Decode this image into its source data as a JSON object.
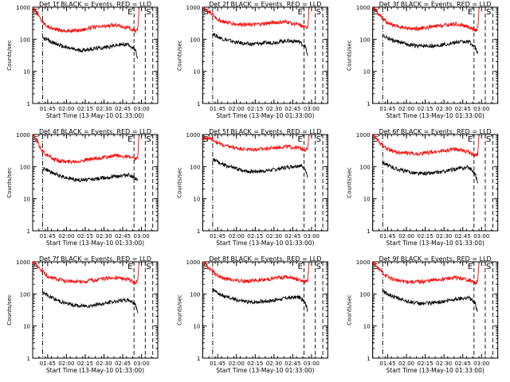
{
  "chart_data": [
    {
      "type": "line",
      "title": "Det 1f BLACK = Events, RED = LLD",
      "xlabel": "Start Time (13-May-10 01:33:00)",
      "ylabel": "Counts/sec",
      "yscale": "log",
      "ylim": [
        1,
        1000
      ],
      "xlim": [
        "01:33",
        "03:13"
      ],
      "x_ticks": [
        "01:45",
        "02:00",
        "02:15",
        "02:30",
        "02:45",
        "03:00"
      ],
      "y_ticks": [
        "1",
        "10",
        "100",
        "1000"
      ],
      "markers": [
        {
          "label": "S",
          "time": "01:33",
          "style": "dash-dot"
        },
        {
          "label": "",
          "time": "01:41",
          "style": "dash-dot"
        },
        {
          "label": "E",
          "time": "02:54",
          "style": "dashed"
        },
        {
          "label": "S",
          "time": "03:03",
          "style": "dashed"
        },
        {
          "label": "",
          "time": "03:09",
          "style": "dashed"
        }
      ],
      "series": [
        {
          "color": "#ff0000",
          "x": [
            "01:33",
            "01:41",
            "01:45",
            "01:50",
            "02:00",
            "02:10",
            "02:20",
            "02:30",
            "02:40",
            "02:50",
            "02:55",
            "02:57",
            "02:58"
          ],
          "y": [
            1000,
            350,
            250,
            210,
            180,
            190,
            230,
            250,
            280,
            220,
            180,
            200,
            900
          ]
        },
        {
          "color": "#000000",
          "x": [
            "01:41",
            "01:45",
            "01:50",
            "02:00",
            "02:10",
            "02:20",
            "02:30",
            "02:40",
            "02:50",
            "02:55",
            "02:57"
          ],
          "y": [
            110,
            95,
            75,
            55,
            45,
            50,
            55,
            65,
            70,
            45,
            25
          ]
        }
      ]
    },
    {
      "type": "line",
      "title": "Det 2f BLACK = Events, RED = LLD",
      "xlabel": "Start Time (13-May-10 01:33:00)",
      "ylabel": "Counts/sec",
      "yscale": "log",
      "ylim": [
        1,
        1000
      ],
      "xlim": [
        "01:33",
        "03:13"
      ],
      "x_ticks": [
        "01:45",
        "02:00",
        "02:15",
        "02:30",
        "02:45",
        "03:00"
      ],
      "y_ticks": [
        "1",
        "10",
        "100",
        "1000"
      ],
      "markers": [
        {
          "label": "S",
          "time": "01:33",
          "style": "dash-dot"
        },
        {
          "label": "",
          "time": "01:41",
          "style": "dash-dot"
        },
        {
          "label": "E",
          "time": "02:54",
          "style": "dashed"
        },
        {
          "label": "S",
          "time": "03:03",
          "style": "dashed"
        },
        {
          "label": "",
          "time": "03:09",
          "style": "dashed"
        }
      ],
      "series": [
        {
          "color": "#ff0000",
          "x": [
            "01:33",
            "01:41",
            "01:45",
            "01:50",
            "02:00",
            "02:10",
            "02:20",
            "02:30",
            "02:40",
            "02:50",
            "02:55",
            "02:57",
            "02:58"
          ],
          "y": [
            1000,
            600,
            420,
            350,
            300,
            280,
            300,
            330,
            350,
            280,
            230,
            250,
            900
          ]
        },
        {
          "color": "#000000",
          "x": [
            "01:41",
            "01:45",
            "01:50",
            "02:00",
            "02:10",
            "02:20",
            "02:30",
            "02:40",
            "02:50",
            "02:55",
            "02:57"
          ],
          "y": [
            150,
            120,
            100,
            80,
            70,
            75,
            80,
            90,
            85,
            60,
            30
          ]
        }
      ]
    },
    {
      "type": "line",
      "title": "Det 3f BLACK = Events, RED = LLD",
      "xlabel": "Start Time (13-May-10 01:33:00)",
      "ylabel": "Counts/sec",
      "yscale": "log",
      "ylim": [
        1,
        1000
      ],
      "xlim": [
        "01:33",
        "03:13"
      ],
      "x_ticks": [
        "01:45",
        "02:00",
        "02:15",
        "02:30",
        "02:45",
        "03:00"
      ],
      "y_ticks": [
        "1",
        "10",
        "100",
        "1000"
      ],
      "markers": [
        {
          "label": "S",
          "time": "01:33",
          "style": "dash-dot"
        },
        {
          "label": "",
          "time": "01:41",
          "style": "dash-dot"
        },
        {
          "label": "E",
          "time": "02:54",
          "style": "dashed"
        },
        {
          "label": "S",
          "time": "03:03",
          "style": "dashed"
        },
        {
          "label": "",
          "time": "03:09",
          "style": "dashed"
        }
      ],
      "series": [
        {
          "color": "#ff0000",
          "x": [
            "01:33",
            "01:41",
            "01:45",
            "01:50",
            "02:00",
            "02:10",
            "02:20",
            "02:30",
            "02:40",
            "02:50",
            "02:55",
            "02:57",
            "02:58"
          ],
          "y": [
            1000,
            450,
            320,
            260,
            220,
            210,
            240,
            270,
            300,
            240,
            190,
            210,
            900
          ]
        },
        {
          "color": "#000000",
          "x": [
            "01:41",
            "01:45",
            "01:50",
            "02:00",
            "02:10",
            "02:20",
            "02:30",
            "02:40",
            "02:50",
            "02:55",
            "02:57"
          ],
          "y": [
            130,
            110,
            90,
            70,
            60,
            62,
            68,
            80,
            85,
            55,
            35
          ]
        }
      ]
    },
    {
      "type": "line",
      "title": "Det 4f BLACK = Events, RED = LLD",
      "xlabel": "Start Time (13-May-10 01:33:00)",
      "ylabel": "Counts/sec",
      "yscale": "log",
      "ylim": [
        1,
        1000
      ],
      "xlim": [
        "01:33",
        "03:13"
      ],
      "x_ticks": [
        "01:45",
        "02:00",
        "02:15",
        "02:30",
        "02:45",
        "03:00"
      ],
      "y_ticks": [
        "1",
        "10",
        "100",
        "1000"
      ],
      "markers": [
        {
          "label": "S",
          "time": "01:33",
          "style": "dash-dot"
        },
        {
          "label": "",
          "time": "01:41",
          "style": "dash-dot"
        },
        {
          "label": "E",
          "time": "02:54",
          "style": "dashed"
        },
        {
          "label": "S",
          "time": "03:03",
          "style": "dashed"
        },
        {
          "label": "",
          "time": "03:09",
          "style": "dashed"
        }
      ],
      "series": [
        {
          "color": "#ff0000",
          "x": [
            "01:33",
            "01:41",
            "01:45",
            "01:50",
            "02:00",
            "02:10",
            "02:20",
            "02:30",
            "02:40",
            "02:50",
            "02:55",
            "02:57",
            "02:58"
          ],
          "y": [
            1000,
            300,
            220,
            170,
            140,
            150,
            170,
            190,
            220,
            200,
            170,
            190,
            900
          ]
        },
        {
          "color": "#000000",
          "x": [
            "01:41",
            "01:45",
            "01:50",
            "02:00",
            "02:10",
            "02:20",
            "02:30",
            "02:40",
            "02:50",
            "02:55",
            "02:57"
          ],
          "y": [
            90,
            75,
            60,
            45,
            38,
            40,
            45,
            50,
            55,
            45,
            40
          ]
        }
      ]
    },
    {
      "type": "line",
      "title": "Det 5f BLACK = Events, RED = LLD",
      "xlabel": "Start Time (13-May-10 01:33:00)",
      "ylabel": "Counts/sec",
      "yscale": "log",
      "ylim": [
        1,
        1000
      ],
      "xlim": [
        "01:33",
        "03:13"
      ],
      "x_ticks": [
        "01:45",
        "02:00",
        "02:15",
        "02:30",
        "02:45",
        "03:00"
      ],
      "y_ticks": [
        "1",
        "10",
        "100",
        "1000"
      ],
      "markers": [
        {
          "label": "S",
          "time": "01:33",
          "style": "dash-dot"
        },
        {
          "label": "",
          "time": "01:41",
          "style": "dash-dot"
        },
        {
          "label": "E",
          "time": "02:54",
          "style": "dashed"
        },
        {
          "label": "S",
          "time": "03:03",
          "style": "dashed"
        },
        {
          "label": "",
          "time": "03:09",
          "style": "dashed"
        }
      ],
      "series": [
        {
          "color": "#ff0000",
          "x": [
            "01:33",
            "01:41",
            "01:45",
            "01:50",
            "02:00",
            "02:10",
            "02:20",
            "02:30",
            "02:40",
            "02:50",
            "02:55",
            "02:57",
            "02:58"
          ],
          "y": [
            800,
            700,
            560,
            450,
            380,
            340,
            350,
            390,
            420,
            380,
            340,
            360,
            1000
          ]
        },
        {
          "color": "#000000",
          "x": [
            "01:41",
            "01:45",
            "01:50",
            "02:00",
            "02:10",
            "02:20",
            "02:30",
            "02:40",
            "02:50",
            "02:55",
            "02:57"
          ],
          "y": [
            170,
            140,
            110,
            85,
            70,
            72,
            80,
            95,
            110,
            90,
            45
          ]
        }
      ]
    },
    {
      "type": "line",
      "title": "Det 6f BLACK = Events, RED = LLD",
      "xlabel": "Start Time (13-May-10 01:33:00)",
      "ylabel": "Counts/sec",
      "yscale": "log",
      "ylim": [
        1,
        1000
      ],
      "xlim": [
        "01:33",
        "03:13"
      ],
      "x_ticks": [
        "01:45",
        "02:00",
        "02:15",
        "02:30",
        "02:45",
        "03:00"
      ],
      "y_ticks": [
        "1",
        "10",
        "100",
        "1000"
      ],
      "markers": [
        {
          "label": "S",
          "time": "01:33",
          "style": "dash-dot"
        },
        {
          "label": "",
          "time": "01:41",
          "style": "dash-dot"
        },
        {
          "label": "E",
          "time": "02:54",
          "style": "dashed"
        },
        {
          "label": "S",
          "time": "03:03",
          "style": "dashed"
        },
        {
          "label": "",
          "time": "03:09",
          "style": "dashed"
        }
      ],
      "series": [
        {
          "color": "#ff0000",
          "x": [
            "01:33",
            "01:41",
            "01:45",
            "01:50",
            "02:00",
            "02:10",
            "02:20",
            "02:30",
            "02:40",
            "02:50",
            "02:55",
            "02:57",
            "02:58"
          ],
          "y": [
            1000,
            450,
            350,
            290,
            260,
            250,
            280,
            310,
            350,
            280,
            220,
            240,
            900
          ]
        },
        {
          "color": "#000000",
          "x": [
            "01:41",
            "01:45",
            "01:50",
            "02:00",
            "02:10",
            "02:20",
            "02:30",
            "02:40",
            "02:50",
            "02:55",
            "02:57"
          ],
          "y": [
            140,
            110,
            90,
            70,
            60,
            62,
            70,
            85,
            95,
            60,
            30
          ]
        }
      ]
    },
    {
      "type": "line",
      "title": "Det 7f BLACK = Events, RED = LLD",
      "xlabel": "Start Time (13-May-10 01:33:00)",
      "ylabel": "Counts/sec",
      "yscale": "log",
      "ylim": [
        1,
        1000
      ],
      "xlim": [
        "01:33",
        "03:13"
      ],
      "x_ticks": [
        "01:45",
        "02:00",
        "02:15",
        "02:30",
        "02:45",
        "03:00"
      ],
      "y_ticks": [
        "1",
        "10",
        "100",
        "1000"
      ],
      "markers": [
        {
          "label": "S",
          "time": "01:33",
          "style": "dash-dot"
        },
        {
          "label": "",
          "time": "01:41",
          "style": "dash-dot"
        },
        {
          "label": "E",
          "time": "02:54",
          "style": "dashed"
        },
        {
          "label": "S",
          "time": "03:03",
          "style": "dashed"
        },
        {
          "label": "",
          "time": "03:09",
          "style": "dashed"
        }
      ],
      "series": [
        {
          "color": "#ff0000",
          "x": [
            "01:33",
            "01:41",
            "01:45",
            "01:50",
            "02:00",
            "02:10",
            "02:20",
            "02:30",
            "02:40",
            "02:50",
            "02:55",
            "02:57",
            "02:58"
          ],
          "y": [
            1000,
            500,
            360,
            300,
            250,
            240,
            260,
            300,
            320,
            270,
            220,
            240,
            900
          ]
        },
        {
          "color": "#000000",
          "x": [
            "01:41",
            "01:45",
            "01:50",
            "02:00",
            "02:10",
            "02:20",
            "02:30",
            "02:40",
            "02:50",
            "02:55",
            "02:57"
          ],
          "y": [
            110,
            90,
            70,
            50,
            42,
            44,
            50,
            60,
            65,
            50,
            25
          ]
        }
      ]
    },
    {
      "type": "line",
      "title": "Det 8f BLACK = Events, RED = LLD",
      "xlabel": "Start Time (13-May-10 01:33:00)",
      "ylabel": "Counts/sec",
      "yscale": "log",
      "ylim": [
        1,
        1000
      ],
      "xlim": [
        "01:33",
        "03:13"
      ],
      "x_ticks": [
        "01:45",
        "02:00",
        "02:15",
        "02:30",
        "02:45",
        "03:00"
      ],
      "y_ticks": [
        "1",
        "10",
        "100",
        "1000"
      ],
      "markers": [
        {
          "label": "S",
          "time": "01:33",
          "style": "dash-dot"
        },
        {
          "label": "",
          "time": "01:41",
          "style": "dash-dot"
        },
        {
          "label": "E",
          "time": "02:54",
          "style": "dashed"
        },
        {
          "label": "S",
          "time": "03:03",
          "style": "dashed"
        },
        {
          "label": "",
          "time": "03:09",
          "style": "dashed"
        }
      ],
      "series": [
        {
          "color": "#ff0000",
          "x": [
            "01:33",
            "01:41",
            "01:45",
            "01:50",
            "02:00",
            "02:10",
            "02:20",
            "02:30",
            "02:40",
            "02:50",
            "02:55",
            "02:57",
            "02:58"
          ],
          "y": [
            1000,
            500,
            370,
            300,
            260,
            250,
            270,
            310,
            340,
            290,
            240,
            260,
            900
          ]
        },
        {
          "color": "#000000",
          "x": [
            "01:41",
            "01:45",
            "01:50",
            "02:00",
            "02:10",
            "02:20",
            "02:30",
            "02:40",
            "02:50",
            "02:55",
            "02:57"
          ],
          "y": [
            130,
            105,
            85,
            65,
            55,
            58,
            64,
            75,
            80,
            55,
            30
          ]
        }
      ]
    },
    {
      "type": "line",
      "title": "Det 9f BLACK = Events, RED = LLD",
      "xlabel": "Start Time (13-May-10 01:33:00)",
      "ylabel": "Counts/sec",
      "yscale": "log",
      "ylim": [
        1,
        1000
      ],
      "xlim": [
        "01:33",
        "03:13"
      ],
      "x_ticks": [
        "01:45",
        "02:00",
        "02:15",
        "02:30",
        "02:45",
        "03:00"
      ],
      "y_ticks": [
        "1",
        "10",
        "100",
        "1000"
      ],
      "markers": [
        {
          "label": "S",
          "time": "01:33",
          "style": "dash-dot"
        },
        {
          "label": "",
          "time": "01:41",
          "style": "dash-dot"
        },
        {
          "label": "E",
          "time": "02:54",
          "style": "dashed"
        },
        {
          "label": "S",
          "time": "03:03",
          "style": "dashed"
        },
        {
          "label": "",
          "time": "03:09",
          "style": "dashed"
        }
      ],
      "series": [
        {
          "color": "#ff0000",
          "x": [
            "01:33",
            "01:41",
            "01:45",
            "01:50",
            "02:00",
            "02:10",
            "02:20",
            "02:30",
            "02:40",
            "02:50",
            "02:55",
            "02:57",
            "02:58"
          ],
          "y": [
            1000,
            450,
            340,
            280,
            240,
            235,
            260,
            295,
            320,
            270,
            220,
            240,
            900
          ]
        },
        {
          "color": "#000000",
          "x": [
            "01:41",
            "01:45",
            "01:50",
            "02:00",
            "02:10",
            "02:20",
            "02:30",
            "02:40",
            "02:50",
            "02:55",
            "02:57"
          ],
          "y": [
            120,
            100,
            80,
            60,
            50,
            52,
            58,
            70,
            78,
            50,
            28
          ]
        }
      ]
    }
  ]
}
